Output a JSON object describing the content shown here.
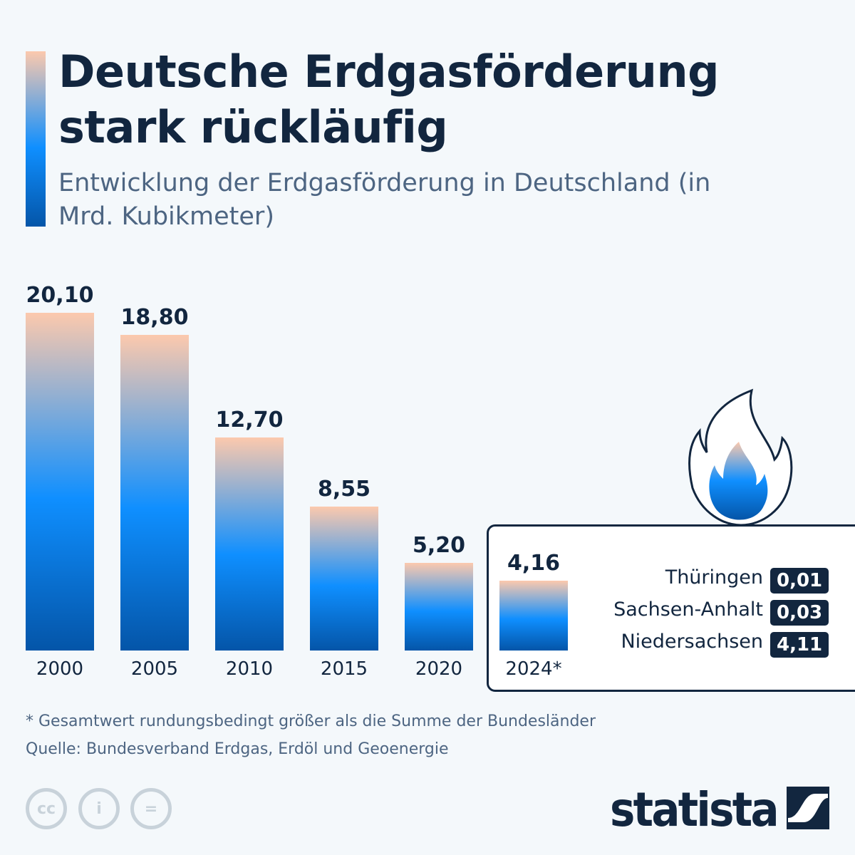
{
  "title": "Deutsche Erdgasförderung stark rückläufig",
  "subtitle": "Entwicklung der Erdgasförderung in Deutschland (in Mrd. Kubikmeter)",
  "chart_data": {
    "type": "bar",
    "categories": [
      "2000",
      "2005",
      "2010",
      "2015",
      "2020",
      "2024*"
    ],
    "values": [
      20.1,
      18.8,
      12.7,
      8.55,
      5.2,
      4.16
    ],
    "value_labels": [
      "20,10",
      "18,80",
      "12,70",
      "8,55",
      "5,20",
      "4,16"
    ],
    "ylim": [
      0,
      20.1
    ],
    "grid": false,
    "breakdown_2024": [
      {
        "state": "Thüringen",
        "value": "0,01"
      },
      {
        "state": "Sachsen-Anhalt",
        "value": "0,03"
      },
      {
        "state": "Niedersachsen",
        "value": "4,11"
      }
    ],
    "colors": {
      "bar_top": "#fcc9ad",
      "bar_mid": "#0f8fff",
      "bar_bottom": "#0455a8",
      "text": "#12263f"
    }
  },
  "footnote": "* Gesamtwert rundungsbedingt größer als die Summe der Bundesländer",
  "source": "Quelle: Bundesverband Erdgas, Erdöl und Geoenergie",
  "license_icons": [
    "cc-icon",
    "by-icon",
    "nd-icon"
  ],
  "brand": "statista"
}
